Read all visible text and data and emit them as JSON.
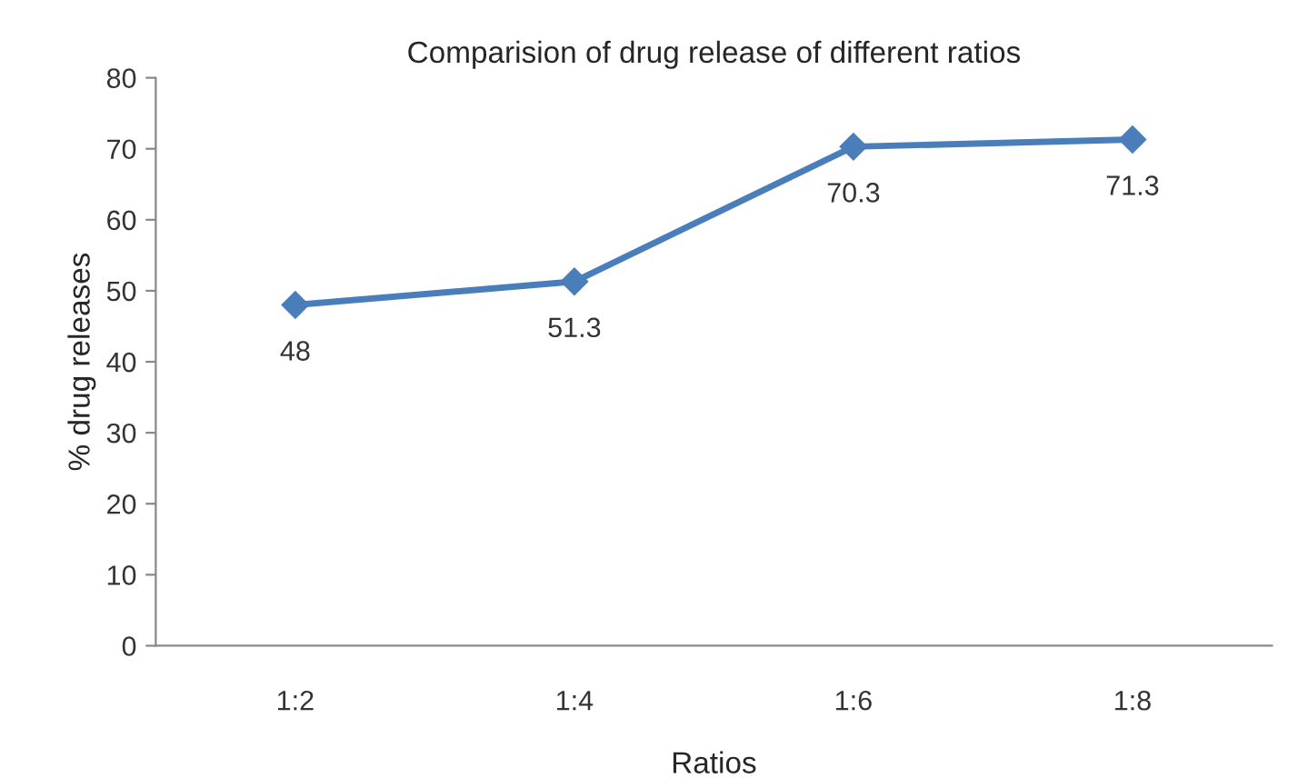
{
  "chart_data": {
    "type": "line",
    "title": "Comparision of drug release of different ratios",
    "xlabel": "Ratios",
    "ylabel": "% drug releases",
    "categories": [
      "1:2",
      "1:4",
      "1:6",
      "1:8"
    ],
    "series": [
      {
        "color": "#4a7ebb",
        "values": [
          48,
          51.3,
          70.3,
          71.3
        ]
      }
    ],
    "ylim": [
      0,
      80
    ],
    "yticks": [
      0,
      10,
      20,
      30,
      40,
      50,
      60,
      70,
      80
    ],
    "grid": false,
    "marker": "diamond",
    "line_style": "solid",
    "data_labels": true
  }
}
